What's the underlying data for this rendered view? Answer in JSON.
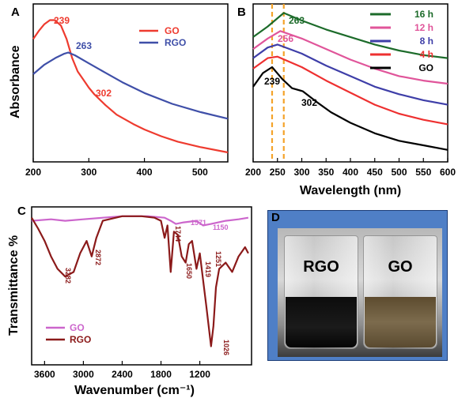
{
  "colors": {
    "go": "#ee3b2f",
    "rgo": "#3f4fa8",
    "h16": "#1c6b2a",
    "h12": "#e0559a",
    "h8": "#3e3ea8",
    "h4": "#ee3030",
    "go_b": "#000000",
    "dash": "#f4a32a",
    "ftir_go": "#cc66cc",
    "ftir_rgo": "#8b1a1a"
  },
  "chart_data": [
    {
      "panel": "A",
      "type": "line",
      "xlabel": "",
      "ylabel": "Absorbance",
      "xlim": [
        200,
        550
      ],
      "xticks": [
        200,
        300,
        400,
        500
      ],
      "legend": {
        "position": "top-right",
        "entries": [
          "GO",
          "RGO"
        ]
      },
      "series": [
        {
          "name": "GO",
          "points": [
            [
              200,
              0.86
            ],
            [
              210,
              0.92
            ],
            [
              220,
              0.97
            ],
            [
              230,
              1.0
            ],
            [
              239,
              1.0
            ],
            [
              250,
              0.96
            ],
            [
              260,
              0.86
            ],
            [
              270,
              0.72
            ],
            [
              280,
              0.62
            ],
            [
              290,
              0.56
            ],
            [
              300,
              0.5
            ],
            [
              310,
              0.45
            ],
            [
              330,
              0.37
            ],
            [
              350,
              0.3
            ],
            [
              380,
              0.23
            ],
            [
              400,
              0.19
            ],
            [
              430,
              0.14
            ],
            [
              460,
              0.1
            ],
            [
              500,
              0.06
            ],
            [
              550,
              0.02
            ]
          ]
        },
        {
          "name": "RGO",
          "points": [
            [
              200,
              0.6
            ],
            [
              220,
              0.67
            ],
            [
              240,
              0.72
            ],
            [
              255,
              0.75
            ],
            [
              263,
              0.76
            ],
            [
              275,
              0.74
            ],
            [
              300,
              0.68
            ],
            [
              330,
              0.61
            ],
            [
              360,
              0.54
            ],
            [
              400,
              0.46
            ],
            [
              450,
              0.38
            ],
            [
              500,
              0.32
            ],
            [
              550,
              0.27
            ]
          ]
        }
      ],
      "annotations": [
        {
          "text": "239",
          "x": 239
        },
        {
          "text": "263",
          "x": 263
        },
        {
          "text": "302",
          "x": 302
        }
      ]
    },
    {
      "panel": "B",
      "type": "line",
      "xlabel": "Wavelength (nm)",
      "xlim": [
        200,
        600
      ],
      "xticks": [
        200,
        250,
        300,
        350,
        400,
        450,
        500,
        550,
        600
      ],
      "legend": {
        "position": "top-right",
        "entries": [
          "16 h",
          "12 h",
          "8 h",
          "4 h",
          "GO"
        ]
      },
      "markers": [
        239,
        263
      ],
      "series": [
        {
          "name": "16 h",
          "points": [
            [
              200,
              0.78
            ],
            [
              230,
              0.85
            ],
            [
              263,
              0.94
            ],
            [
              300,
              0.89
            ],
            [
              350,
              0.83
            ],
            [
              400,
              0.78
            ],
            [
              450,
              0.73
            ],
            [
              500,
              0.69
            ],
            [
              550,
              0.66
            ],
            [
              600,
              0.64
            ]
          ]
        },
        {
          "name": "12 h",
          "points": [
            [
              200,
              0.7
            ],
            [
              230,
              0.77
            ],
            [
              256,
              0.82
            ],
            [
              300,
              0.77
            ],
            [
              350,
              0.7
            ],
            [
              400,
              0.63
            ],
            [
              450,
              0.57
            ],
            [
              500,
              0.52
            ],
            [
              550,
              0.49
            ],
            [
              600,
              0.47
            ]
          ]
        },
        {
          "name": "8 h",
          "points": [
            [
              200,
              0.64
            ],
            [
              230,
              0.71
            ],
            [
              250,
              0.73
            ],
            [
              300,
              0.67
            ],
            [
              350,
              0.59
            ],
            [
              400,
              0.52
            ],
            [
              450,
              0.45
            ],
            [
              500,
              0.4
            ],
            [
              550,
              0.36
            ],
            [
              600,
              0.33
            ]
          ]
        },
        {
          "name": "4 h",
          "points": [
            [
              200,
              0.57
            ],
            [
              230,
              0.64
            ],
            [
              250,
              0.65
            ],
            [
              300,
              0.58
            ],
            [
              350,
              0.49
            ],
            [
              400,
              0.41
            ],
            [
              450,
              0.33
            ],
            [
              500,
              0.27
            ],
            [
              550,
              0.23
            ],
            [
              600,
              0.2
            ]
          ]
        },
        {
          "name": "GO",
          "points": [
            [
              200,
              0.45
            ],
            [
              220,
              0.54
            ],
            [
              239,
              0.58
            ],
            [
              260,
              0.5
            ],
            [
              280,
              0.44
            ],
            [
              302,
              0.42
            ],
            [
              330,
              0.35
            ],
            [
              360,
              0.28
            ],
            [
              400,
              0.21
            ],
            [
              450,
              0.14
            ],
            [
              500,
              0.09
            ],
            [
              550,
              0.06
            ],
            [
              600,
              0.03
            ]
          ]
        }
      ],
      "annotations": [
        {
          "text": "263",
          "x": 263
        },
        {
          "text": "256",
          "x": 256
        },
        {
          "text": "239",
          "x": 239
        },
        {
          "text": "302",
          "x": 302
        }
      ]
    },
    {
      "panel": "C",
      "type": "line",
      "xlabel": "Wavenumber (cm⁻¹)",
      "ylabel": "Transmittance %",
      "xlim": [
        3800,
        400
      ],
      "xticks": [
        3600,
        3000,
        2400,
        1800,
        1200
      ],
      "legend": {
        "position": "bottom-left",
        "entries": [
          "GO",
          "RGO"
        ]
      },
      "series": [
        {
          "name": "GO",
          "points": [
            [
              3800,
              0.93
            ],
            [
              3500,
              0.94
            ],
            [
              3282,
              0.93
            ],
            [
              3000,
              0.94
            ],
            [
              2700,
              0.95
            ],
            [
              2400,
              0.96
            ],
            [
              2000,
              0.96
            ],
            [
              1744,
              0.95
            ],
            [
              1650,
              0.93
            ],
            [
              1571,
              0.91
            ],
            [
              1450,
              0.92
            ],
            [
              1251,
              0.93
            ],
            [
              1150,
              0.9
            ],
            [
              1026,
              0.91
            ],
            [
              800,
              0.93
            ],
            [
              600,
              0.94
            ],
            [
              450,
              0.95
            ]
          ]
        },
        {
          "name": "RGO",
          "points": [
            [
              3800,
              0.95
            ],
            [
              3700,
              0.88
            ],
            [
              3600,
              0.8
            ],
            [
              3500,
              0.7
            ],
            [
              3400,
              0.62
            ],
            [
              3282,
              0.57
            ],
            [
              3150,
              0.6
            ],
            [
              3050,
              0.72
            ],
            [
              2950,
              0.8
            ],
            [
              2872,
              0.7
            ],
            [
              2800,
              0.82
            ],
            [
              2700,
              0.93
            ],
            [
              2500,
              0.95
            ],
            [
              2400,
              0.96
            ],
            [
              2100,
              0.96
            ],
            [
              1900,
              0.95
            ],
            [
              1800,
              0.93
            ],
            [
              1744,
              0.82
            ],
            [
              1700,
              0.9
            ],
            [
              1650,
              0.6
            ],
            [
              1600,
              0.86
            ],
            [
              1540,
              0.84
            ],
            [
              1480,
              0.7
            ],
            [
              1419,
              0.66
            ],
            [
              1370,
              0.78
            ],
            [
              1320,
              0.8
            ],
            [
              1251,
              0.62
            ],
            [
              1200,
              0.72
            ],
            [
              1150,
              0.55
            ],
            [
              1100,
              0.38
            ],
            [
              1026,
              0.12
            ],
            [
              990,
              0.25
            ],
            [
              950,
              0.5
            ],
            [
              900,
              0.62
            ],
            [
              800,
              0.66
            ],
            [
              700,
              0.6
            ],
            [
              600,
              0.7
            ],
            [
              500,
              0.76
            ],
            [
              450,
              0.72
            ]
          ]
        }
      ],
      "annotations": [
        {
          "text": "3282"
        },
        {
          "text": "2872"
        },
        {
          "text": "1744"
        },
        {
          "text": "1650"
        },
        {
          "text": "1571"
        },
        {
          "text": "1419"
        },
        {
          "text": "1251"
        },
        {
          "text": "1150"
        },
        {
          "text": "1026"
        }
      ]
    }
  ],
  "panel_d": {
    "label": "D",
    "vial_left": "RGO",
    "vial_right": "GO"
  }
}
